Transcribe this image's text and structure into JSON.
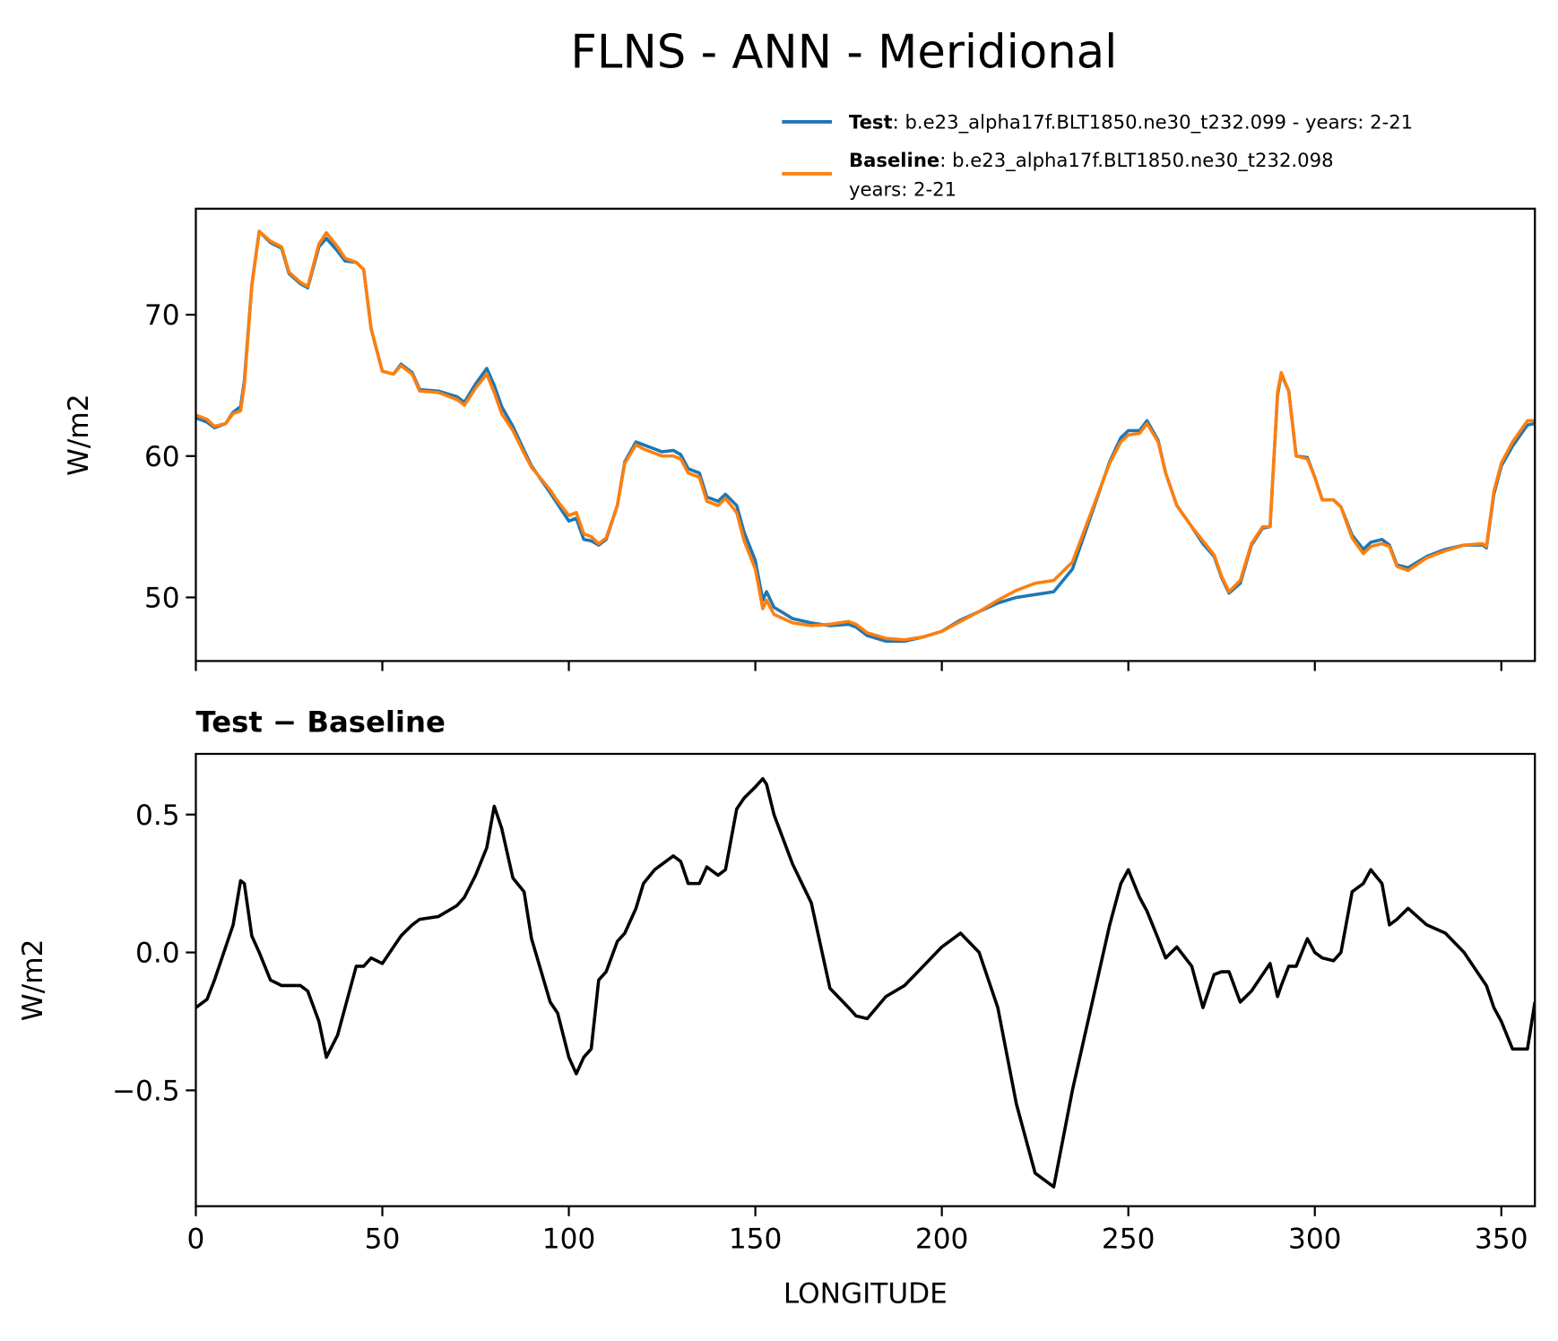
{
  "title": "FLNS - ANN - Meridional",
  "chart_data": [
    {
      "type": "line",
      "ylabel": "W/m2",
      "x": [
        0,
        3,
        5,
        8,
        10,
        12,
        13,
        15,
        17,
        20,
        23,
        25,
        28,
        30,
        33,
        35,
        38,
        40,
        43,
        45,
        47,
        50,
        53,
        55,
        58,
        60,
        65,
        70,
        72,
        75,
        78,
        80,
        82,
        85,
        88,
        90,
        95,
        97,
        100,
        102,
        104,
        106,
        108,
        110,
        113,
        115,
        118,
        120,
        123,
        125,
        128,
        130,
        132,
        135,
        137,
        140,
        142,
        145,
        147,
        150,
        152,
        153,
        155,
        160,
        165,
        170,
        175,
        177,
        180,
        185,
        190,
        195,
        200,
        205,
        210,
        215,
        220,
        225,
        230,
        235,
        240,
        245,
        248,
        250,
        253,
        255,
        258,
        260,
        263,
        267,
        270,
        273,
        275,
        277,
        280,
        283,
        286,
        288,
        290,
        291,
        293,
        295,
        298,
        300,
        302,
        305,
        307,
        310,
        313,
        315,
        318,
        320,
        322,
        325,
        330,
        335,
        340,
        345,
        346,
        348,
        350,
        353,
        357,
        359
      ],
      "series": [
        {
          "name": "Test",
          "description": [
            ": b.e23_alpha17f.BLT1850.ne30_t232.099 - years: 2-21"
          ],
          "color": "#1f77b4",
          "values": [
            62.7,
            62.4,
            62.0,
            62.3,
            63.1,
            63.5,
            65.3,
            72.1,
            75.9,
            75.1,
            74.7,
            72.9,
            72.2,
            71.9,
            74.8,
            75.4,
            74.5,
            73.8,
            73.7,
            73.2,
            69.0,
            66.0,
            65.8,
            66.5,
            65.9,
            64.7,
            64.6,
            64.2,
            63.8,
            65.1,
            66.2,
            65.0,
            63.5,
            62.1,
            60.4,
            59.3,
            57.4,
            56.6,
            55.4,
            55.6,
            54.1,
            54.0,
            53.7,
            54.1,
            56.5,
            59.6,
            61.0,
            60.8,
            60.5,
            60.3,
            60.4,
            60.1,
            59.1,
            58.8,
            57.1,
            56.8,
            57.3,
            56.5,
            54.6,
            52.6,
            49.8,
            50.4,
            49.3,
            48.5,
            48.2,
            48.0,
            48.1,
            47.9,
            47.3,
            46.9,
            46.9,
            47.2,
            47.6,
            48.4,
            49.0,
            49.6,
            50.0,
            50.2,
            50.4,
            52.0,
            55.8,
            59.6,
            61.3,
            61.8,
            61.8,
            62.5,
            61.1,
            58.8,
            56.5,
            55.0,
            53.8,
            52.9,
            51.4,
            50.3,
            51.0,
            53.7,
            54.9,
            55.0,
            64.3,
            65.8,
            64.6,
            60.0,
            59.9,
            58.5,
            56.9,
            56.9,
            56.4,
            54.4,
            53.4,
            53.9,
            54.1,
            53.7,
            52.3,
            52.1,
            52.9,
            53.4,
            53.7,
            53.7,
            53.5,
            57.3,
            59.3,
            60.7,
            62.2,
            62.3
          ]
        },
        {
          "name": "Baseline",
          "description": [
            ": b.e23_alpha17f.BLT1850.ne30_t232.098",
            "years: 2-21"
          ],
          "color": "#ff7f0e",
          "values": [
            62.9,
            62.6,
            62.1,
            62.3,
            63.0,
            63.2,
            65,
            72,
            75.9,
            75.2,
            74.8,
            73,
            72.3,
            72,
            75,
            75.8,
            74.8,
            74,
            73.7,
            73.2,
            69,
            66,
            65.8,
            66.4,
            65.8,
            64.6,
            64.5,
            64.0,
            63.6,
            64.8,
            65.8,
            64.5,
            63,
            61.8,
            60.2,
            59.2,
            57.6,
            56.8,
            55.8,
            56,
            54.5,
            54.3,
            53.8,
            54.2,
            56.5,
            59.5,
            60.8,
            60.5,
            60.2,
            60,
            60,
            59.8,
            58.8,
            58.5,
            56.8,
            56.5,
            57,
            56,
            54,
            52,
            49.2,
            49.8,
            48.8,
            48.2,
            48,
            48.1,
            48.3,
            48.1,
            47.5,
            47.1,
            47.0,
            47.2,
            47.6,
            48.3,
            49,
            49.8,
            50.5,
            51,
            51.2,
            52.5,
            56,
            59.5,
            61,
            61.5,
            61.6,
            62.3,
            61,
            58.8,
            56.5,
            55,
            54,
            53,
            51.5,
            50.4,
            51.2,
            53.8,
            55,
            55,
            64.5,
            65.9,
            64.6,
            60,
            59.8,
            58.5,
            56.9,
            56.9,
            56.4,
            54.2,
            53.1,
            53.6,
            53.8,
            53.6,
            52.2,
            51.9,
            52.8,
            53.3,
            53.7,
            53.8,
            53.6,
            57.5,
            59.5,
            61,
            62.5,
            62.5
          ]
        }
      ],
      "xlim": [
        0,
        359
      ],
      "xticks": [
        0,
        50,
        100,
        150,
        200,
        250,
        300,
        350
      ],
      "ylim": [
        45.5,
        77.5
      ],
      "yticks": [
        50,
        60,
        70
      ],
      "grid": false,
      "legend": "above right"
    },
    {
      "type": "line",
      "title": "Test − Baseline",
      "xlabel": "LONGITUDE",
      "ylabel": "W/m2",
      "x": [
        0,
        3,
        5,
        8,
        10,
        12,
        13,
        15,
        17,
        20,
        23,
        25,
        28,
        30,
        33,
        35,
        38,
        40,
        43,
        45,
        47,
        50,
        53,
        55,
        58,
        60,
        65,
        70,
        72,
        75,
        78,
        80,
        82,
        85,
        88,
        90,
        95,
        97,
        100,
        102,
        104,
        106,
        108,
        110,
        113,
        115,
        118,
        120,
        123,
        125,
        128,
        130,
        132,
        135,
        137,
        140,
        142,
        145,
        147,
        150,
        152,
        153,
        155,
        160,
        165,
        170,
        175,
        177,
        180,
        185,
        190,
        195,
        200,
        205,
        210,
        215,
        220,
        225,
        230,
        235,
        240,
        245,
        248,
        250,
        253,
        255,
        258,
        260,
        263,
        267,
        270,
        273,
        275,
        277,
        280,
        283,
        286,
        288,
        290,
        291,
        293,
        295,
        298,
        300,
        302,
        305,
        307,
        310,
        313,
        315,
        318,
        320,
        322,
        325,
        330,
        335,
        340,
        345,
        346,
        348,
        350,
        353,
        357,
        359
      ],
      "color": "#000000",
      "values": [
        -0.2,
        -0.17,
        -0.1,
        0.02,
        0.1,
        0.26,
        0.25,
        0.06,
        0.0,
        -0.1,
        -0.12,
        -0.12,
        -0.12,
        -0.14,
        -0.25,
        -0.38,
        -0.3,
        -0.2,
        -0.05,
        -0.05,
        -0.02,
        -0.04,
        0.02,
        0.06,
        0.1,
        0.12,
        0.13,
        0.17,
        0.2,
        0.28,
        0.38,
        0.53,
        0.45,
        0.27,
        0.22,
        0.05,
        -0.18,
        -0.22,
        -0.38,
        -0.44,
        -0.38,
        -0.35,
        -0.1,
        -0.07,
        0.04,
        0.07,
        0.16,
        0.25,
        0.3,
        0.32,
        0.35,
        0.33,
        0.25,
        0.25,
        0.31,
        0.28,
        0.3,
        0.52,
        0.56,
        0.6,
        0.63,
        0.61,
        0.5,
        0.32,
        0.18,
        -0.13,
        -0.2,
        -0.23,
        -0.24,
        -0.16,
        -0.12,
        -0.05,
        0.02,
        0.07,
        0.0,
        -0.2,
        -0.55,
        -0.8,
        -0.85,
        -0.5,
        -0.2,
        0.1,
        0.25,
        0.3,
        0.2,
        0.15,
        0.05,
        -0.02,
        0.02,
        -0.05,
        -0.2,
        -0.08,
        -0.07,
        -0.07,
        -0.18,
        -0.14,
        -0.08,
        -0.04,
        -0.16,
        -0.12,
        -0.05,
        -0.05,
        0.05,
        0.0,
        -0.02,
        -0.03,
        0.0,
        0.22,
        0.25,
        0.3,
        0.25,
        0.1,
        0.12,
        0.16,
        0.1,
        0.07,
        0.0,
        -0.1,
        -0.12,
        -0.2,
        -0.25,
        -0.35,
        -0.35,
        -0.18
      ],
      "xlim": [
        0,
        359
      ],
      "xticks": [
        0,
        50,
        100,
        150,
        200,
        250,
        300,
        350
      ],
      "ylim": [
        -0.92,
        0.72
      ],
      "yticks": [
        {
          "value": -0.5,
          "label": "−0.5"
        },
        {
          "value": 0,
          "label": "0.0"
        },
        0.5
      ],
      "grid": false
    }
  ]
}
